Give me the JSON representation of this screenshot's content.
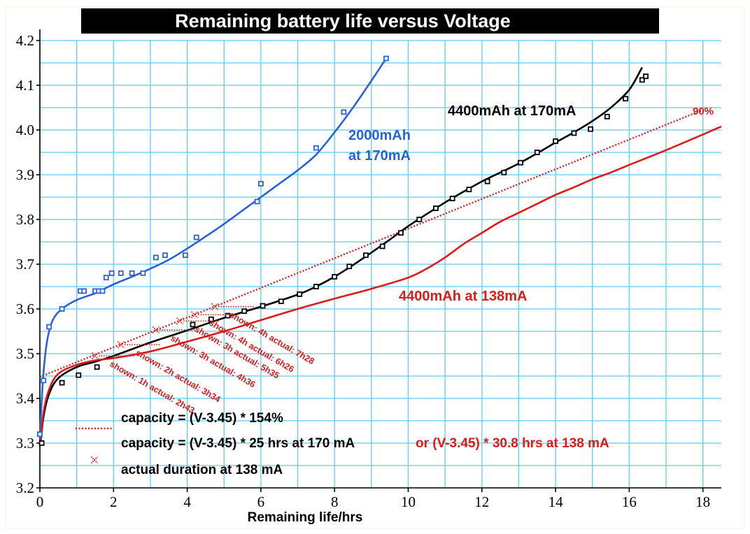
{
  "chart_data": {
    "type": "line",
    "title": "Remaining battery life versus Voltage",
    "xlabel": "Remaining life/hrs",
    "ylabel": "",
    "xlim": [
      0,
      18
    ],
    "ylim": [
      3.2,
      4.2
    ],
    "x_ticks": [
      0,
      2,
      4,
      6,
      8,
      10,
      12,
      14,
      16,
      18
    ],
    "y_ticks": [
      3.2,
      3.3,
      3.4,
      3.5,
      3.6,
      3.7,
      3.8,
      3.9,
      4.0,
      4.1,
      4.2
    ],
    "grid": true,
    "colors": {
      "blue": "#2a62d4",
      "black": "#000000",
      "red": "#dd1a1a",
      "grid": "#5fcdea"
    },
    "series": [
      {
        "name": "2000mAh at 170mA",
        "label_lines": [
          "2000mAh",
          "at 170mA"
        ],
        "color": "#2a62d4",
        "points": [
          [
            0.0,
            3.32
          ],
          [
            0.1,
            3.44
          ],
          [
            0.25,
            3.56
          ],
          [
            0.6,
            3.6
          ],
          [
            1.1,
            3.64
          ],
          [
            1.2,
            3.64
          ],
          [
            1.5,
            3.64
          ],
          [
            1.6,
            3.64
          ],
          [
            1.7,
            3.64
          ],
          [
            1.8,
            3.67
          ],
          [
            1.95,
            3.68
          ],
          [
            2.2,
            3.68
          ],
          [
            2.5,
            3.68
          ],
          [
            2.8,
            3.68
          ],
          [
            3.15,
            3.715
          ],
          [
            3.4,
            3.72
          ],
          [
            3.95,
            3.72
          ],
          [
            4.25,
            3.76
          ],
          [
            5.9,
            3.84
          ],
          [
            6.0,
            3.88
          ],
          [
            7.5,
            3.96
          ],
          [
            8.25,
            4.04
          ],
          [
            9.4,
            4.16
          ]
        ],
        "fit": [
          [
            0.0,
            3.31
          ],
          [
            0.04,
            3.38
          ],
          [
            0.1,
            3.46
          ],
          [
            0.2,
            3.53
          ],
          [
            0.35,
            3.575
          ],
          [
            0.6,
            3.6
          ],
          [
            1.0,
            3.62
          ],
          [
            1.5,
            3.635
          ],
          [
            2.0,
            3.655
          ],
          [
            2.5,
            3.672
          ],
          [
            3.0,
            3.69
          ],
          [
            3.5,
            3.71
          ],
          [
            4.0,
            3.735
          ],
          [
            4.5,
            3.762
          ],
          [
            5.0,
            3.79
          ],
          [
            5.5,
            3.82
          ],
          [
            6.0,
            3.85
          ],
          [
            6.5,
            3.88
          ],
          [
            7.0,
            3.91
          ],
          [
            7.5,
            3.945
          ],
          [
            8.0,
            3.995
          ],
          [
            8.5,
            4.05
          ],
          [
            9.0,
            4.11
          ],
          [
            9.4,
            4.16
          ]
        ]
      },
      {
        "name": "4400mAh at 170mA",
        "color": "#000000",
        "points": [
          [
            0.05,
            3.3
          ],
          [
            0.6,
            3.435
          ],
          [
            1.05,
            3.452
          ],
          [
            1.55,
            3.47
          ],
          [
            4.15,
            3.565
          ],
          [
            4.65,
            3.577
          ],
          [
            5.1,
            3.585
          ],
          [
            5.55,
            3.595
          ],
          [
            6.05,
            3.607
          ],
          [
            6.55,
            3.617
          ],
          [
            7.05,
            3.633
          ],
          [
            7.5,
            3.65
          ],
          [
            8.0,
            3.672
          ],
          [
            8.4,
            3.695
          ],
          [
            8.85,
            3.72
          ],
          [
            9.3,
            3.74
          ],
          [
            9.8,
            3.77
          ],
          [
            10.3,
            3.8
          ],
          [
            10.75,
            3.825
          ],
          [
            11.2,
            3.847
          ],
          [
            11.65,
            3.867
          ],
          [
            12.15,
            3.885
          ],
          [
            12.6,
            3.905
          ],
          [
            13.05,
            3.927
          ],
          [
            13.5,
            3.95
          ],
          [
            14.0,
            3.975
          ],
          [
            14.5,
            3.993
          ],
          [
            14.95,
            4.002
          ],
          [
            15.4,
            4.03
          ],
          [
            15.9,
            4.07
          ],
          [
            16.35,
            4.112
          ],
          [
            16.45,
            4.12
          ]
        ],
        "fit": [
          [
            0.02,
            3.3
          ],
          [
            0.1,
            3.36
          ],
          [
            0.25,
            3.41
          ],
          [
            0.5,
            3.445
          ],
          [
            1.0,
            3.47
          ],
          [
            1.5,
            3.482
          ],
          [
            2.0,
            3.495
          ],
          [
            3.0,
            3.525
          ],
          [
            4.0,
            3.552
          ],
          [
            5.0,
            3.58
          ],
          [
            6.0,
            3.605
          ],
          [
            7.0,
            3.632
          ],
          [
            7.5,
            3.65
          ],
          [
            8.0,
            3.672
          ],
          [
            8.5,
            3.698
          ],
          [
            9.0,
            3.726
          ],
          [
            9.5,
            3.755
          ],
          [
            10.0,
            3.785
          ],
          [
            10.5,
            3.812
          ],
          [
            11.0,
            3.838
          ],
          [
            11.5,
            3.862
          ],
          [
            12.0,
            3.885
          ],
          [
            12.5,
            3.905
          ],
          [
            13.0,
            3.925
          ],
          [
            13.5,
            3.948
          ],
          [
            14.0,
            3.972
          ],
          [
            14.5,
            3.995
          ],
          [
            15.0,
            4.02
          ],
          [
            15.5,
            4.05
          ],
          [
            16.0,
            4.09
          ],
          [
            16.35,
            4.14
          ]
        ]
      },
      {
        "name": "4400mAh at 138mA",
        "color": "#dd1a1a",
        "fit": [
          [
            0.02,
            3.3
          ],
          [
            0.1,
            3.37
          ],
          [
            0.25,
            3.42
          ],
          [
            0.5,
            3.455
          ],
          [
            1.0,
            3.475
          ],
          [
            1.5,
            3.485
          ],
          [
            2.0,
            3.49
          ],
          [
            3.0,
            3.505
          ],
          [
            4.0,
            3.527
          ],
          [
            5.0,
            3.55
          ],
          [
            6.0,
            3.575
          ],
          [
            7.0,
            3.6
          ],
          [
            8.0,
            3.623
          ],
          [
            9.0,
            3.645
          ],
          [
            10.0,
            3.67
          ],
          [
            10.5,
            3.69
          ],
          [
            11.0,
            3.715
          ],
          [
            11.5,
            3.745
          ],
          [
            12.0,
            3.77
          ],
          [
            12.5,
            3.795
          ],
          [
            13.0,
            3.815
          ],
          [
            13.5,
            3.835
          ],
          [
            14.0,
            3.855
          ],
          [
            14.5,
            3.872
          ],
          [
            15.0,
            3.89
          ],
          [
            15.5,
            3.905
          ],
          [
            16.0,
            3.922
          ],
          [
            17.0,
            3.955
          ],
          [
            18.0,
            3.99
          ],
          [
            18.5,
            4.008
          ]
        ]
      }
    ],
    "reference_line": {
      "name": "capacity = (V-3.45) * 154%",
      "label": "90%",
      "color": "#dd1a1a",
      "style": "dotted",
      "start": [
        0.0,
        3.448
      ],
      "end": [
        18.0,
        4.045
      ]
    },
    "actual_markers": [
      {
        "x": 1.5,
        "y": 3.495,
        "label": "shown: 1h actual: 2h43"
      },
      {
        "x": 2.2,
        "y": 3.52,
        "label": "shown: 2h actual: 3h34"
      },
      {
        "x": 3.15,
        "y": 3.553,
        "label": "shown: 3h actual: 4h36"
      },
      {
        "x": 3.8,
        "y": 3.573,
        "label": "shown: 3h actual: 5h35"
      },
      {
        "x": 4.2,
        "y": 3.587,
        "label": "shown: 4h actual: 6h26"
      },
      {
        "x": 4.75,
        "y": 3.605,
        "label": "shown: 4h actual: 7h28"
      }
    ],
    "legend": [
      {
        "symbol": "none",
        "text": "capacity = (V-3.45) * 154%",
        "color": "#000000"
      },
      {
        "symbol": "dotted-line",
        "text": "capacity = (V-3.45) * 25 hrs at 170 mA",
        "extra": "or (V-3.45) * 30.8 hrs at 138 mA",
        "color": "#000000",
        "extra_color": "#dd1a1a"
      },
      {
        "symbol": "x-marker",
        "text": "actual duration at 138 mA",
        "color": "#000000"
      }
    ]
  }
}
